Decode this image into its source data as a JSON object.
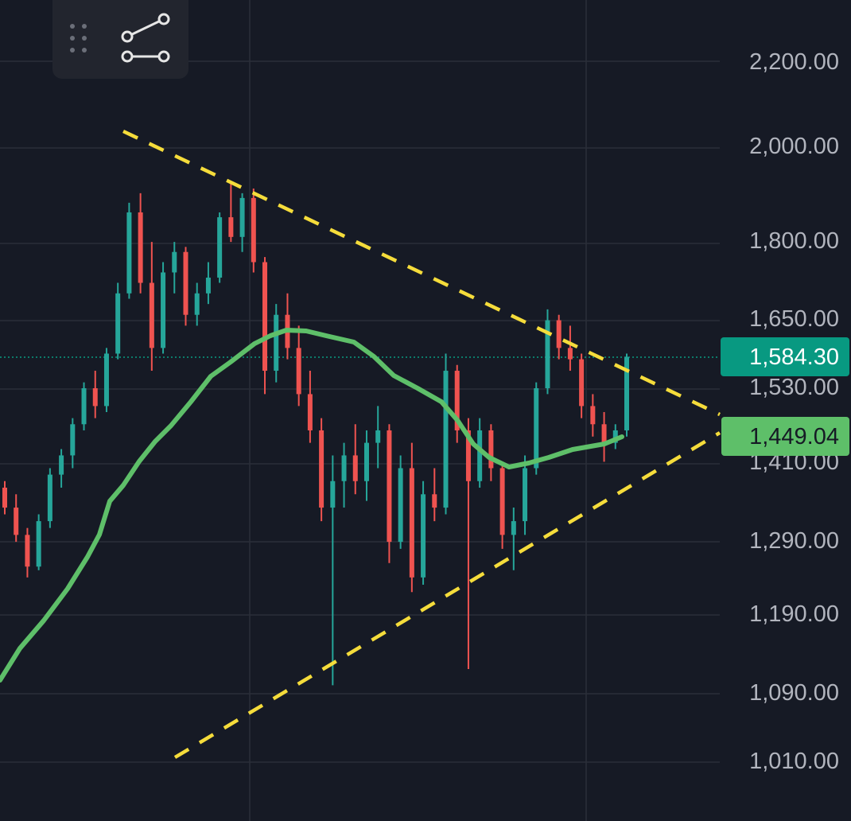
{
  "toolbar": {
    "drag_handle_icon": "drag-dots-icon",
    "tool_icon": "trend-line-tool-icon"
  },
  "price_axis": {
    "labels": [
      "2,200.00",
      "2,000.00",
      "1,800.00",
      "1,650.00",
      "1,530.00",
      "1,410.00",
      "1,290.00",
      "1,190.00",
      "1,090.00",
      "1,010.00"
    ]
  },
  "badges": {
    "last_price": {
      "value": "1,584.30",
      "color": "#089981",
      "text_color": "#ffffff"
    },
    "ma_value": {
      "value": "1,449.04",
      "color": "#5ebf69",
      "text_color": "#161a25"
    }
  },
  "colors": {
    "background": "#161a25",
    "up_candle": "#26a69a",
    "down_candle": "#ef5350",
    "moving_average": "#5ebf69",
    "trendline": "#f5dc3b",
    "grid": "#2a2e39"
  },
  "chart_data": {
    "type": "candlestick",
    "y_scale": "log",
    "y_range": [
      975,
      2420
    ],
    "ticks": [
      2200,
      2000,
      1800,
      1650,
      1530,
      1410,
      1290,
      1190,
      1090,
      1010
    ],
    "last_price": 1584.3,
    "moving_average_last": 1449.04,
    "grid": true,
    "ohlc_approx": [
      [
        1370,
        1380,
        1330,
        1340
      ],
      [
        1340,
        1360,
        1290,
        1300
      ],
      [
        1300,
        1310,
        1240,
        1255
      ],
      [
        1255,
        1330,
        1250,
        1320
      ],
      [
        1320,
        1400,
        1310,
        1390
      ],
      [
        1390,
        1430,
        1370,
        1420
      ],
      [
        1420,
        1480,
        1400,
        1470
      ],
      [
        1470,
        1540,
        1460,
        1530
      ],
      [
        1530,
        1560,
        1480,
        1500
      ],
      [
        1500,
        1600,
        1490,
        1590
      ],
      [
        1590,
        1720,
        1580,
        1700
      ],
      [
        1700,
        1880,
        1690,
        1860
      ],
      [
        1860,
        1900,
        1700,
        1720
      ],
      [
        1720,
        1800,
        1560,
        1600
      ],
      [
        1600,
        1760,
        1590,
        1740
      ],
      [
        1740,
        1800,
        1700,
        1780
      ],
      [
        1780,
        1790,
        1640,
        1660
      ],
      [
        1660,
        1720,
        1640,
        1700
      ],
      [
        1700,
        1760,
        1680,
        1730
      ],
      [
        1730,
        1860,
        1720,
        1850
      ],
      [
        1850,
        1920,
        1800,
        1810
      ],
      [
        1810,
        1900,
        1780,
        1890
      ],
      [
        1890,
        1910,
        1740,
        1760
      ],
      [
        1760,
        1770,
        1520,
        1560
      ],
      [
        1560,
        1680,
        1540,
        1660
      ],
      [
        1660,
        1700,
        1580,
        1600
      ],
      [
        1600,
        1640,
        1500,
        1520
      ],
      [
        1520,
        1560,
        1440,
        1460
      ],
      [
        1460,
        1480,
        1320,
        1340
      ],
      [
        1340,
        1420,
        1100,
        1380
      ],
      [
        1380,
        1440,
        1340,
        1420
      ],
      [
        1420,
        1470,
        1360,
        1380
      ],
      [
        1380,
        1460,
        1350,
        1440
      ],
      [
        1440,
        1500,
        1400,
        1460
      ],
      [
        1460,
        1470,
        1260,
        1290
      ],
      [
        1290,
        1420,
        1280,
        1400
      ],
      [
        1400,
        1440,
        1220,
        1240
      ],
      [
        1240,
        1380,
        1230,
        1360
      ],
      [
        1360,
        1400,
        1320,
        1340
      ],
      [
        1340,
        1590,
        1330,
        1560
      ],
      [
        1560,
        1570,
        1440,
        1460
      ],
      [
        1460,
        1480,
        1120,
        1380
      ],
      [
        1380,
        1480,
        1370,
        1460
      ],
      [
        1460,
        1470,
        1380,
        1400
      ],
      [
        1400,
        1410,
        1280,
        1300
      ],
      [
        1300,
        1340,
        1250,
        1320
      ],
      [
        1320,
        1420,
        1300,
        1400
      ],
      [
        1400,
        1540,
        1390,
        1530
      ],
      [
        1530,
        1670,
        1520,
        1650
      ],
      [
        1650,
        1660,
        1580,
        1600
      ],
      [
        1600,
        1640,
        1560,
        1580
      ],
      [
        1580,
        1590,
        1480,
        1500
      ],
      [
        1500,
        1520,
        1450,
        1470
      ],
      [
        1470,
        1490,
        1410,
        1440
      ],
      [
        1440,
        1470,
        1430,
        1460
      ],
      [
        1460,
        1590,
        1450,
        1584.3
      ]
    ]
  }
}
